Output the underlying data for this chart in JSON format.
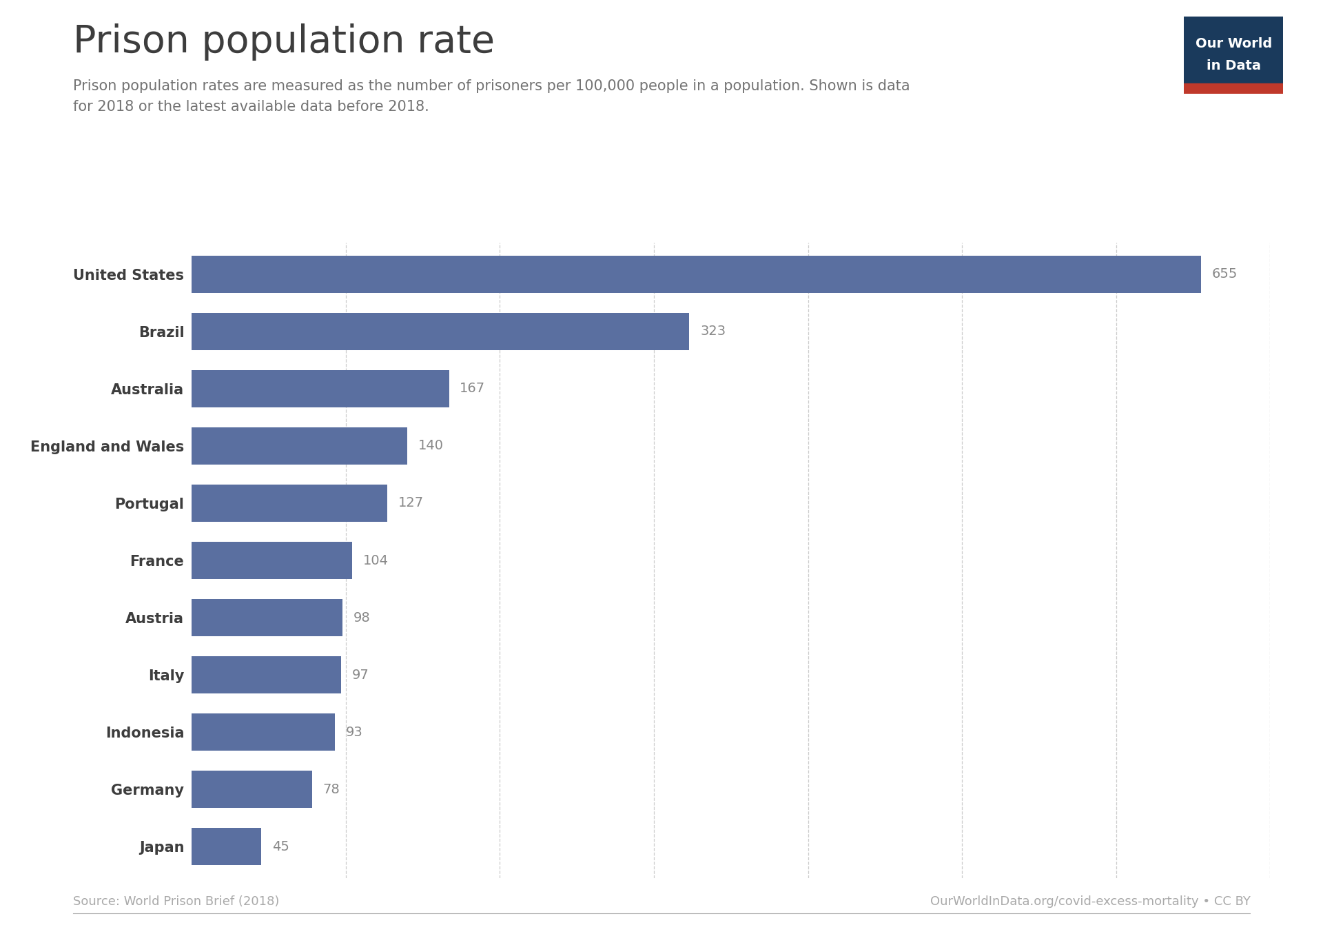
{
  "title": "Prison population rate",
  "subtitle_line1": "Prison population rates are measured as the number of prisoners per 100,000 people in a population. Shown is data",
  "subtitle_line2": "for 2018 or the latest available data before 2018.",
  "countries": [
    "United States",
    "Brazil",
    "Australia",
    "England and Wales",
    "Portugal",
    "France",
    "Austria",
    "Italy",
    "Indonesia",
    "Germany",
    "Japan"
  ],
  "values": [
    655,
    323,
    167,
    140,
    127,
    104,
    98,
    97,
    93,
    78,
    45
  ],
  "bar_color": "#5a6fa0",
  "background_color": "#ffffff",
  "title_color": "#3d3d3d",
  "subtitle_color": "#737373",
  "value_color": "#888888",
  "grid_color": "#cccccc",
  "source_left": "Source: World Prison Brief (2018)",
  "source_right": "OurWorldInData.org/covid-excess-mortality • CC BY",
  "footer_color": "#aaaaaa",
  "owid_box_color": "#1a3a5c",
  "owid_red_color": "#c0392b",
  "xlim": [
    0,
    700
  ],
  "grid_values": [
    100,
    200,
    300,
    400,
    500,
    600,
    700
  ]
}
